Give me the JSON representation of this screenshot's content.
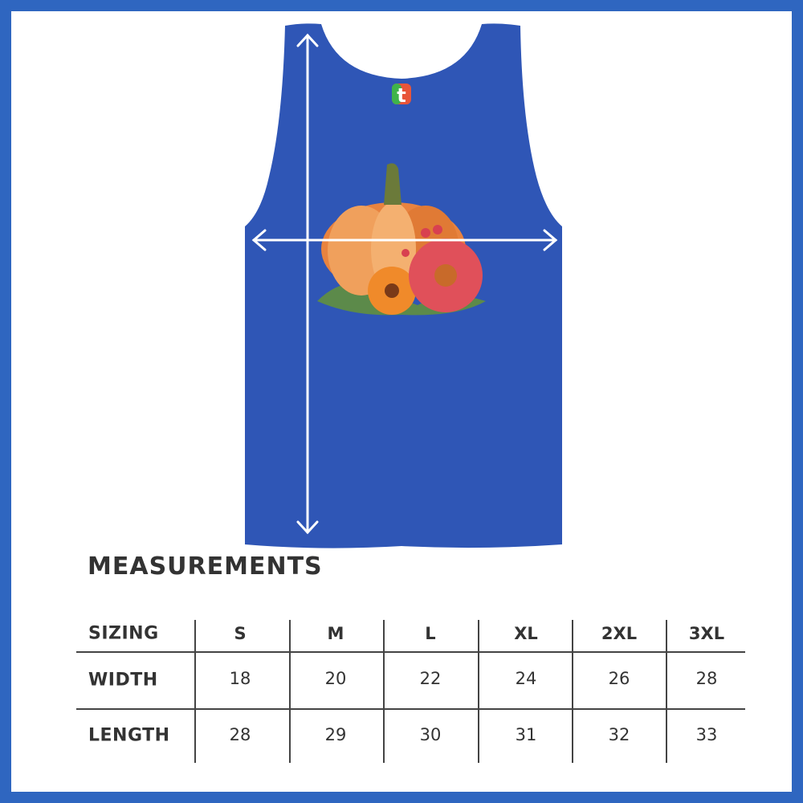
{
  "colors": {
    "frame": "#2f66c0",
    "garment": "#2f56b6",
    "text": "#333333"
  },
  "logo_text": "t",
  "measurements": {
    "title": "MEASUREMENTS",
    "header": [
      "SIZING",
      "S",
      "M",
      "L",
      "XL",
      "2XL",
      "3XL"
    ],
    "rows": [
      {
        "label": "WIDTH",
        "values": [
          "18",
          "20",
          "22",
          "24",
          "26",
          "28"
        ]
      },
      {
        "label": "LENGTH",
        "values": [
          "28",
          "29",
          "30",
          "31",
          "32",
          "33"
        ]
      }
    ]
  }
}
